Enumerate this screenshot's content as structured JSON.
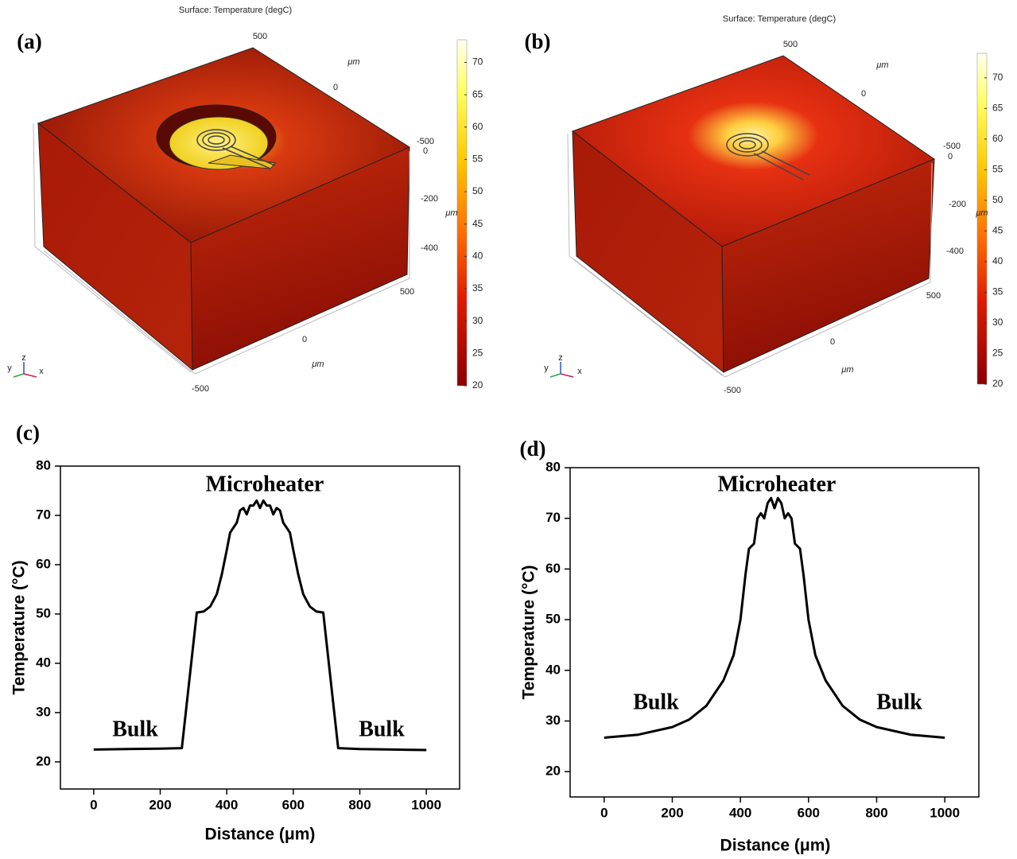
{
  "chart_data": [
    {
      "type": "surface3d",
      "label": "(a)",
      "title": "Surface: Temperature (degC)",
      "unit": "μm",
      "xticks": [
        500,
        0,
        -500
      ],
      "yticks": [
        500,
        0,
        -500
      ],
      "zticks": [
        0,
        -200,
        -400
      ],
      "triad": [
        "z",
        "y",
        "x"
      ],
      "colorbar": {
        "lim": [
          20,
          73.5
        ],
        "ticks": [
          20,
          25,
          30,
          35,
          40,
          45,
          50,
          55,
          60,
          65,
          70
        ]
      }
    },
    {
      "type": "surface3d",
      "label": "(b)",
      "title": "Surface: Temperature (degC)",
      "unit": "μm",
      "xticks": [
        500,
        0,
        -500
      ],
      "yticks": [
        500,
        0,
        -500
      ],
      "zticks": [
        0,
        -200,
        -400
      ],
      "triad": [
        "z",
        "y",
        "x"
      ],
      "colorbar": {
        "lim": [
          20,
          74
        ],
        "ticks": [
          20,
          25,
          30,
          35,
          40,
          45,
          50,
          55,
          60,
          65,
          70
        ]
      }
    },
    {
      "type": "line",
      "label": "(c)",
      "x_label": "Distance (μm)",
      "y_label": "Temperature (°C)",
      "annotations": [
        "Microheater",
        "Bulk",
        "Bulk"
      ],
      "color": "#000000",
      "x": [
        0,
        100,
        200,
        265,
        310,
        330,
        350,
        370,
        385,
        400,
        410,
        420,
        430,
        440,
        450,
        460,
        470,
        480,
        490,
        500,
        510,
        520,
        530,
        540,
        550,
        560,
        570,
        580,
        590,
        600,
        615,
        630,
        650,
        670,
        690,
        735,
        800,
        900,
        1000
      ],
      "values": [
        22.5,
        22.6,
        22.7,
        22.8,
        50.3,
        50.5,
        51.5,
        54,
        58,
        63,
        66.5,
        67.5,
        68.5,
        71,
        71.5,
        70.2,
        72,
        72,
        73,
        71.5,
        73,
        72,
        72,
        70.2,
        71.5,
        71,
        68.5,
        67.5,
        66.5,
        63,
        58,
        54,
        51.5,
        50.5,
        50.3,
        22.8,
        22.6,
        22.5,
        22.4
      ],
      "xlim": [
        -100,
        1100
      ],
      "ylim": [
        14.5,
        80
      ],
      "xticks": [
        0,
        200,
        400,
        600,
        800,
        1000
      ],
      "yticks": [
        20,
        30,
        40,
        50,
        60,
        70,
        80
      ]
    },
    {
      "type": "line",
      "label": "(d)",
      "x_label": "Distance (μm)",
      "y_label": "Temperature (°C)",
      "annotations": [
        "Microheater",
        "Bulk",
        "Bulk"
      ],
      "color": "#000000",
      "x": [
        0,
        100,
        200,
        250,
        300,
        350,
        380,
        400,
        415,
        425,
        440,
        450,
        460,
        470,
        480,
        490,
        500,
        510,
        520,
        530,
        540,
        550,
        560,
        575,
        585,
        600,
        620,
        650,
        700,
        750,
        800,
        900,
        1000
      ],
      "values": [
        26.7,
        27.3,
        28.8,
        30.3,
        33,
        38,
        43,
        50,
        59,
        64,
        65,
        70,
        71,
        70,
        73,
        74,
        72,
        74,
        73,
        70,
        71,
        70,
        65,
        64,
        59,
        50,
        43,
        38,
        33,
        30.3,
        28.8,
        27.3,
        26.7
      ],
      "xlim": [
        -100,
        1100
      ],
      "ylim": [
        15,
        80
      ],
      "xticks": [
        0,
        200,
        400,
        600,
        800,
        1000
      ],
      "yticks": [
        20,
        30,
        40,
        50,
        60,
        70,
        80
      ]
    }
  ]
}
